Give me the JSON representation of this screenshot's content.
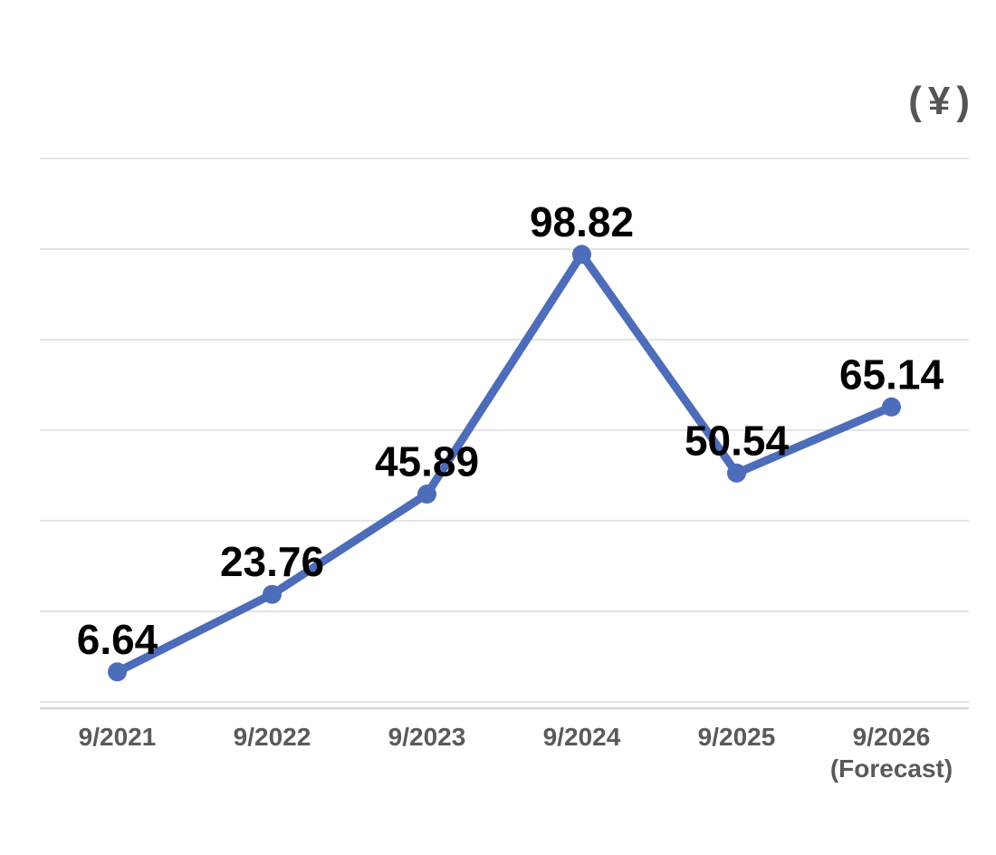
{
  "chart_data": {
    "type": "line",
    "unit_label": "(¥)",
    "categories": [
      {
        "label": "9/2021"
      },
      {
        "label": "9/2022"
      },
      {
        "label": "9/2023"
      },
      {
        "label": "9/2024"
      },
      {
        "label": "9/2025"
      },
      {
        "label": "9/2026",
        "sublabel": "(Forecast)"
      }
    ],
    "values": [
      6.64,
      23.76,
      45.89,
      98.82,
      50.54,
      65.14
    ],
    "data_labels": [
      "6.64",
      "23.76",
      "45.89",
      "98.82",
      "50.54",
      "65.14"
    ],
    "ylim": [
      0,
      120
    ],
    "grid_step": 20,
    "grid": "horizontal",
    "legend": "none",
    "line_color": "#4D6CB9",
    "marker_color": "#4D6CB9",
    "data_label_color": "#000000",
    "axis_label_color": "#5A5A5A",
    "unit_label_color": "#555555",
    "gridline_color": "#E4E4E4",
    "axis_line_color": "#D5D5D5"
  }
}
